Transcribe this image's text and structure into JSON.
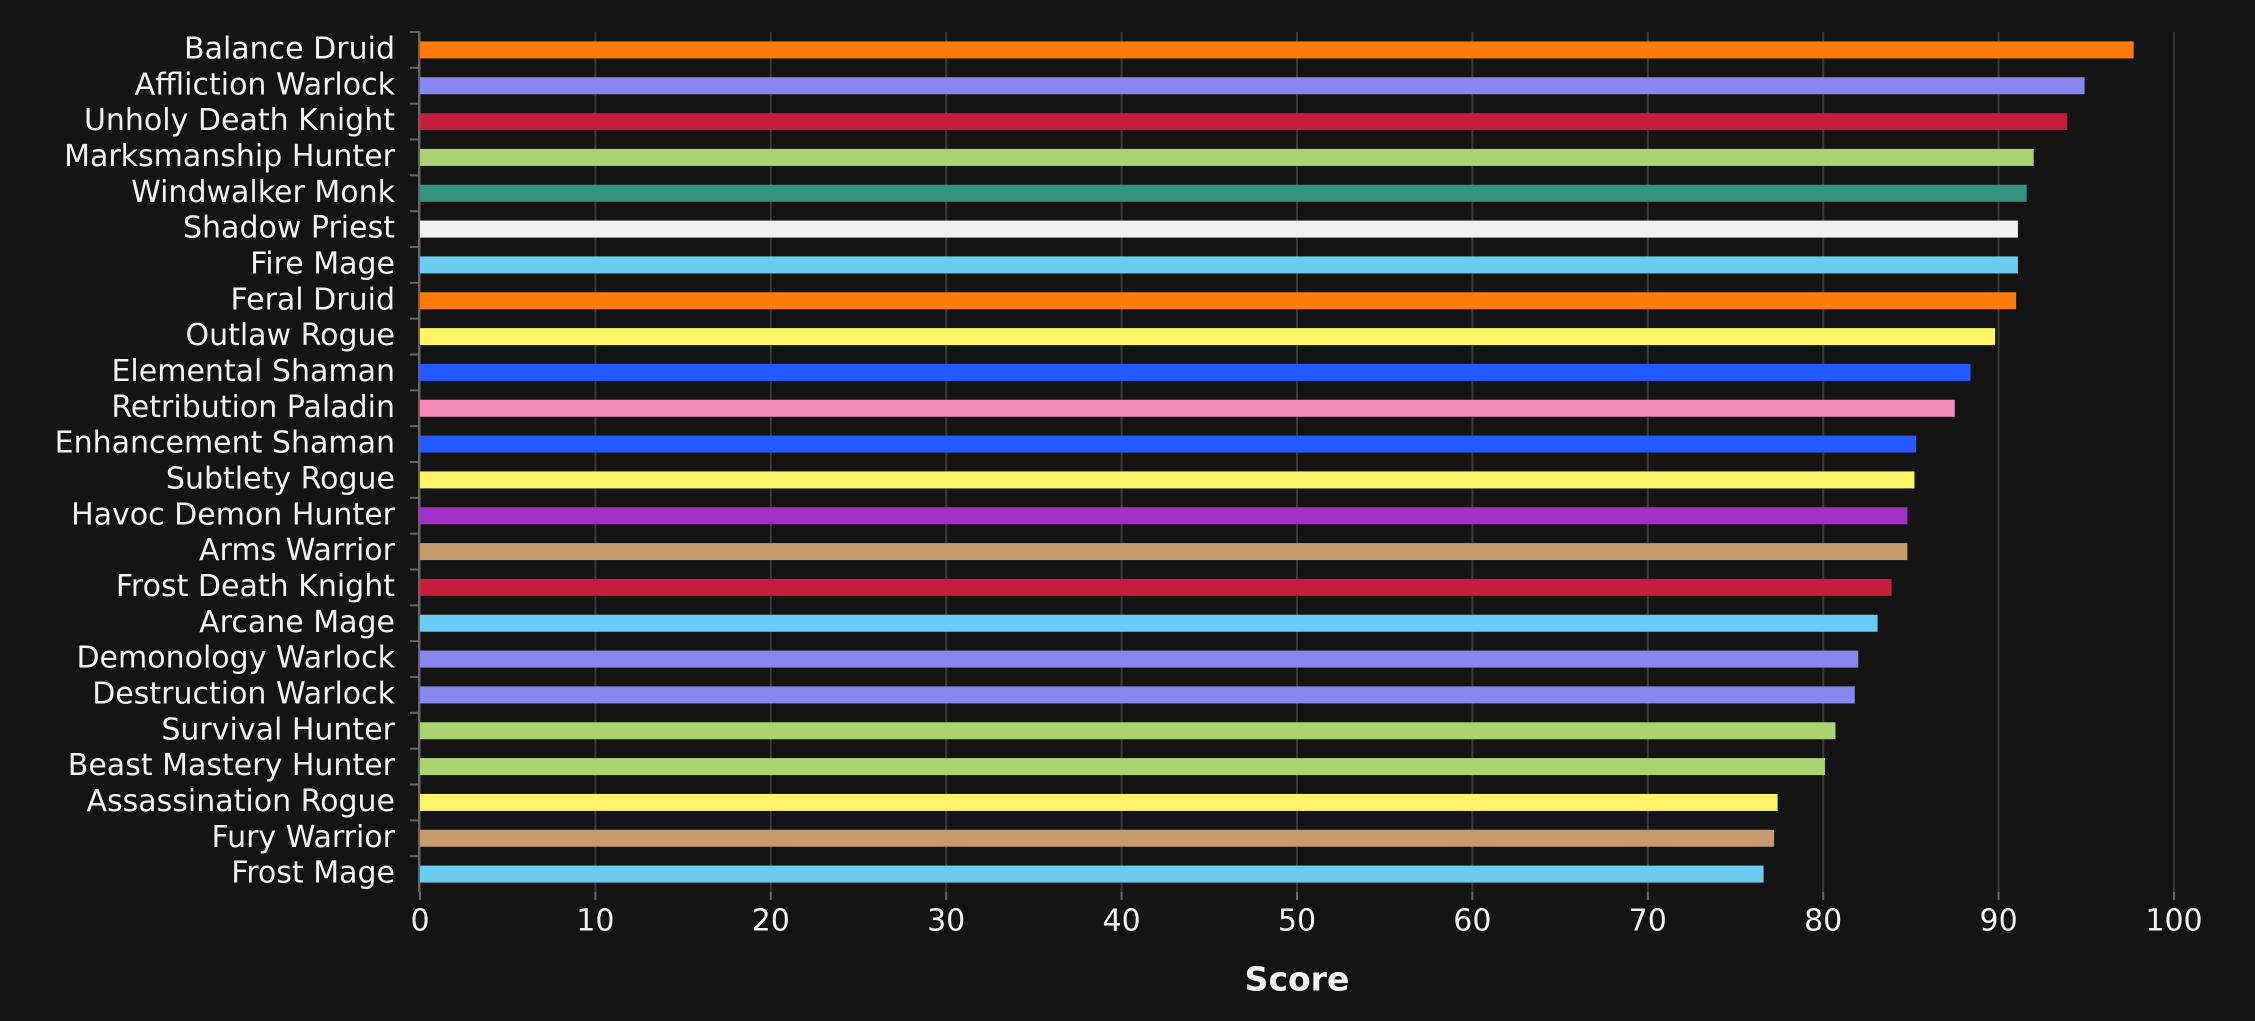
{
  "chart_data": {
    "type": "hbar",
    "xlabel": "Score",
    "categories": [
      "Balance Druid",
      "Affliction Warlock",
      "Unholy Death Knight",
      "Marksmanship Hunter",
      "Windwalker Monk",
      "Shadow Priest",
      "Fire Mage",
      "Feral Druid",
      "Outlaw Rogue",
      "Elemental Shaman",
      "Retribution Paladin",
      "Enhancement Shaman",
      "Subtlety Rogue",
      "Havoc Demon Hunter",
      "Arms Warrior",
      "Frost Death Knight",
      "Arcane Mage",
      "Demonology Warlock",
      "Destruction Warlock",
      "Survival Hunter",
      "Beast Mastery Hunter",
      "Assassination Rogue",
      "Fury Warrior",
      "Frost Mage"
    ],
    "values": [
      97.7,
      94.9,
      93.9,
      92.0,
      91.6,
      91.1,
      91.1,
      91.0,
      89.8,
      88.4,
      87.5,
      85.3,
      85.2,
      84.8,
      84.8,
      83.9,
      83.1,
      82.0,
      81.8,
      80.7,
      80.1,
      77.4,
      77.2,
      76.6
    ],
    "colors": [
      "#ff7c0a",
      "#8788ee",
      "#c41e3a",
      "#aad372",
      "#33937f",
      "#f0f0f0",
      "#69ccf0",
      "#ff7c0a",
      "#fff468",
      "#2459ff",
      "#f48cba",
      "#2459ff",
      "#fff468",
      "#a330c9",
      "#c69b6d",
      "#c41e3a",
      "#69ccf0",
      "#8788ee",
      "#8788ee",
      "#aad372",
      "#aad372",
      "#fff468",
      "#c69b6d",
      "#69ccf0"
    ],
    "xlim": [
      0,
      100
    ],
    "xticks": [
      0,
      10,
      20,
      30,
      40,
      50,
      60,
      70,
      80,
      90,
      100
    ],
    "grid": true
  }
}
